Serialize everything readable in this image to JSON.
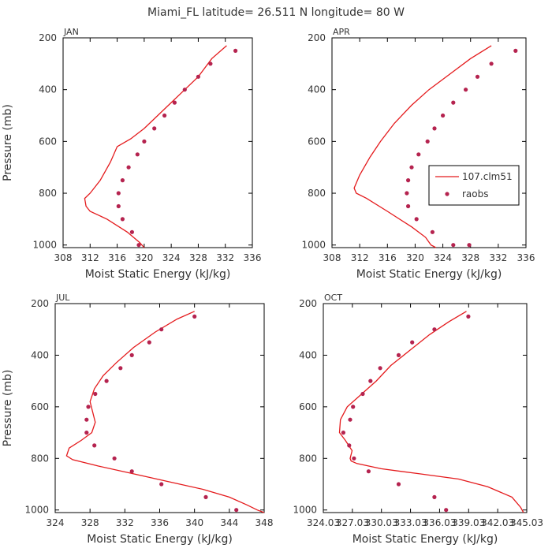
{
  "title": "Miami_FL   latitude= 26.511 N longitude= 80 W",
  "legend": {
    "placement": "inside APR panel, right",
    "entries": [
      {
        "label": "107.clm51",
        "style": "line",
        "color": "#e41a1c"
      },
      {
        "label": "raobs",
        "style": "dots",
        "color": "#b5234f"
      }
    ]
  },
  "chart_data": [
    {
      "type": "line",
      "panel": "JAN",
      "xlabel": "Moist Static Energy (kJ/kg)",
      "ylabel": "Pressure (mb)",
      "xlim": [
        308,
        336
      ],
      "ylim": [
        1010,
        200
      ],
      "y_inverted": true,
      "xticks": [
        308,
        312,
        316,
        320,
        324,
        328,
        332,
        336
      ],
      "xtick_labels": [
        "308",
        "312",
        "316",
        "320",
        "324",
        "328",
        "332",
        "336"
      ],
      "yticks": [
        200,
        400,
        600,
        800,
        1000
      ],
      "ytick_labels": [
        "200",
        "400",
        "600",
        "800",
        "1000"
      ],
      "grid": false,
      "series": [
        {
          "name": "107.clm51",
          "kind": "line",
          "color": "#e41a1c",
          "x": [
            332.2,
            330,
            328,
            326,
            324,
            322,
            320,
            318,
            316,
            315,
            313.5,
            312,
            311.2,
            311.4,
            312,
            314.5,
            317.5,
            319.3,
            320
          ],
          "y": [
            230,
            280,
            350,
            400,
            450,
            500,
            550,
            590,
            620,
            680,
            750,
            800,
            820,
            850,
            870,
            900,
            950,
            990,
            1010
          ]
        },
        {
          "name": "raobs",
          "kind": "scatter",
          "color": "#b5234f",
          "x": [
            333.5,
            329.8,
            328,
            326,
            324.5,
            323,
            321.5,
            320,
            319,
            317.7,
            316.8,
            316.2,
            316.2,
            316.8,
            318.2,
            319.2
          ],
          "y": [
            250,
            300,
            350,
            400,
            450,
            500,
            550,
            600,
            650,
            700,
            750,
            800,
            850,
            900,
            950,
            1000
          ]
        }
      ]
    },
    {
      "type": "line",
      "panel": "APR",
      "xlabel": "Moist Static Energy (kJ/kg)",
      "ylabel": "",
      "xlim": [
        308,
        336
      ],
      "ylim": [
        1010,
        200
      ],
      "y_inverted": true,
      "xticks": [
        308,
        312,
        316,
        320,
        324,
        328,
        332,
        336
      ],
      "xtick_labels": [
        "308",
        "312",
        "316",
        "320",
        "324",
        "328",
        "332",
        "336"
      ],
      "yticks": [
        200,
        400,
        600,
        800,
        1000
      ],
      "ytick_labels": [
        "200",
        "400",
        "600",
        "800",
        "1000"
      ],
      "grid": false,
      "series": [
        {
          "name": "107.clm51",
          "kind": "line",
          "color": "#e41a1c",
          "x": [
            331,
            328,
            325,
            322,
            319.5,
            317,
            315,
            313.5,
            312,
            311.2,
            311.5,
            313,
            316,
            319.5,
            321.5,
            322.3,
            323
          ],
          "y": [
            230,
            280,
            340,
            400,
            460,
            530,
            600,
            660,
            730,
            780,
            800,
            820,
            870,
            930,
            970,
            1000,
            1010
          ]
        },
        {
          "name": "raobs",
          "kind": "scatter",
          "color": "#b5234f",
          "x": [
            334.5,
            331,
            329,
            327.3,
            325.5,
            324,
            322.8,
            321.8,
            320.5,
            319.5,
            319,
            318.8,
            319,
            320.2,
            322.5,
            325.5,
            327.8
          ],
          "y": [
            250,
            300,
            350,
            400,
            450,
            500,
            550,
            600,
            650,
            700,
            750,
            800,
            850,
            900,
            950,
            1000,
            1000
          ]
        }
      ]
    },
    {
      "type": "line",
      "panel": "JUL",
      "xlabel": "Moist Static Energy (kJ/kg)",
      "ylabel": "Pressure (mb)",
      "xlim": [
        324,
        348
      ],
      "ylim": [
        1010,
        200
      ],
      "y_inverted": true,
      "xticks": [
        324,
        328,
        332,
        336,
        340,
        344,
        348
      ],
      "xtick_labels": [
        "324",
        "328",
        "332",
        "336",
        "340",
        "344",
        "348"
      ],
      "yticks": [
        200,
        400,
        600,
        800,
        1000
      ],
      "ytick_labels": [
        "200",
        "400",
        "600",
        "800",
        "1000"
      ],
      "grid": false,
      "series": [
        {
          "name": "107.clm51",
          "kind": "line",
          "color": "#e41a1c",
          "x": [
            340,
            338,
            335.5,
            333,
            331,
            329.5,
            328.5,
            328,
            328.3,
            328.6,
            328.2,
            327,
            325.6,
            325.3,
            326,
            329,
            333,
            337,
            341,
            344,
            346,
            347.2,
            348
          ],
          "y": [
            230,
            260,
            310,
            370,
            430,
            480,
            530,
            580,
            620,
            660,
            700,
            730,
            760,
            790,
            805,
            830,
            860,
            890,
            920,
            950,
            980,
            1000,
            1010
          ]
        },
        {
          "name": "raobs",
          "kind": "scatter",
          "color": "#b5234f",
          "x": [
            340,
            336.2,
            334.8,
            332.8,
            331.5,
            329.9,
            328.6,
            327.8,
            327.6,
            327.6,
            328.5,
            330.8,
            332.8,
            336.2,
            341.3,
            344.8
          ],
          "y": [
            250,
            300,
            350,
            400,
            450,
            500,
            550,
            600,
            650,
            700,
            750,
            800,
            850,
            900,
            950,
            1000
          ]
        }
      ]
    },
    {
      "type": "line",
      "panel": "OCT",
      "xlabel": "Moist Static Energy (kJ/kg)",
      "ylabel": "",
      "xlim": [
        324.03,
        345.03
      ],
      "ylim": [
        1010,
        200
      ],
      "y_inverted": true,
      "xticks": [
        324.03,
        327.03,
        330.03,
        333.03,
        336.03,
        339.03,
        342.03,
        345.03
      ],
      "xtick_labels": [
        "324.03",
        "327.03",
        "330.03",
        "333.03",
        "336.03",
        "339.03",
        "342.03",
        "345.03"
      ],
      "yticks": [
        200,
        400,
        600,
        800,
        1000
      ],
      "ytick_labels": [
        "200",
        "400",
        "600",
        "800",
        "1000"
      ],
      "grid": false,
      "series": [
        {
          "name": "107.clm51",
          "kind": "line",
          "color": "#e41a1c",
          "x": [
            338.8,
            337,
            335,
            333,
            331,
            329.5,
            328,
            326.5,
            325.8,
            325.7,
            326.3,
            327,
            326.8,
            326.9,
            327.5,
            330,
            334,
            338,
            341,
            343.5,
            344.4,
            344.7
          ],
          "y": [
            230,
            270,
            320,
            380,
            440,
            500,
            550,
            600,
            650,
            700,
            730,
            770,
            800,
            810,
            820,
            840,
            860,
            880,
            910,
            950,
            990,
            1010
          ]
        },
        {
          "name": "raobs",
          "kind": "scatter",
          "color": "#b5234f",
          "x": [
            339,
            335.5,
            333.2,
            331.8,
            329.9,
            328.9,
            328.1,
            327.1,
            326.8,
            326.1,
            326.7,
            327.2,
            328.7,
            331.8,
            335.5,
            336.7
          ],
          "y": [
            250,
            300,
            350,
            400,
            450,
            500,
            550,
            600,
            650,
            700,
            750,
            800,
            850,
            900,
            950,
            1000
          ]
        }
      ]
    }
  ]
}
